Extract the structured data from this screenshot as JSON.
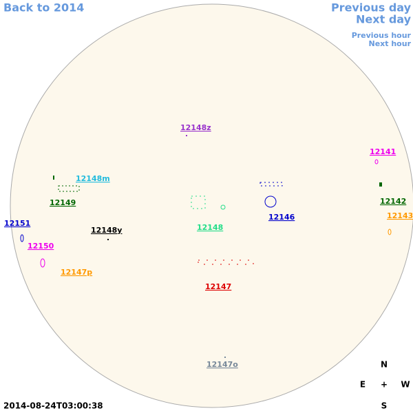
{
  "navigation": {
    "back": "Back to 2014",
    "previous_day": "Previous day",
    "next_day": "Next day",
    "previous_hour": "Previous hour",
    "next_hour": "Next hour"
  },
  "regions": [
    {
      "label": "12148z",
      "color": "#9933cc"
    },
    {
      "label": "12141",
      "color": "#ee00ee"
    },
    {
      "label": "12148m",
      "color": "#22bbdd"
    },
    {
      "label": "12149",
      "color": "#006600"
    },
    {
      "label": "12142",
      "color": "#006600"
    },
    {
      "label": "12146",
      "color": "#0000cc"
    },
    {
      "label": "12143",
      "color": "#ff9900"
    },
    {
      "label": "12151",
      "color": "#0000cc"
    },
    {
      "label": "12148",
      "color": "#22dd88"
    },
    {
      "label": "12148y",
      "color": "#000000"
    },
    {
      "label": "12150",
      "color": "#ee00ee"
    },
    {
      "label": "12147p",
      "color": "#ff9900"
    },
    {
      "label": "12147",
      "color": "#dd0000"
    },
    {
      "label": "12147o",
      "color": "#778899"
    }
  ],
  "compass": {
    "north": "N",
    "east": "E",
    "center": "+",
    "west": "W",
    "south": "S"
  },
  "timestamp": "2014-08-24T03:00:38"
}
